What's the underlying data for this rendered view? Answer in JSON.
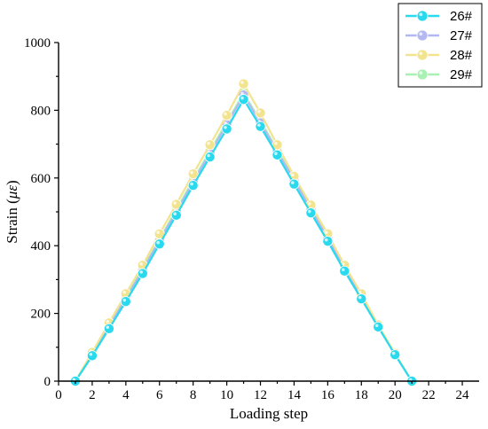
{
  "chart_data": {
    "type": "line",
    "xlabel": "Loading step",
    "ylabel": "Strain (",
    "ylabel_symbol": "με",
    "ylabel_close": ")",
    "xlim": [
      0,
      25
    ],
    "ylim": [
      0,
      1000
    ],
    "xticks": [
      0,
      2,
      4,
      6,
      8,
      10,
      12,
      14,
      16,
      18,
      20,
      22,
      24
    ],
    "yticks": [
      0,
      200,
      400,
      600,
      800,
      1000
    ],
    "grid": false,
    "legend_position": "top-right",
    "x": [
      1,
      2,
      3,
      4,
      5,
      6,
      7,
      8,
      9,
      10,
      11,
      12,
      13,
      14,
      15,
      16,
      17,
      18,
      19,
      20,
      21
    ],
    "series": [
      {
        "name": "26#",
        "color": "#29d9ee",
        "values": [
          0,
          75,
          155,
          235,
          318,
          405,
          490,
          578,
          662,
          745,
          832,
          752,
          668,
          582,
          497,
          413,
          325,
          243,
          160,
          78,
          0
        ]
      },
      {
        "name": "27#",
        "color": "#b4b8f2",
        "values": [
          0,
          78,
          162,
          243,
          328,
          415,
          500,
          588,
          673,
          758,
          845,
          763,
          678,
          594,
          507,
          422,
          334,
          250,
          164,
          80,
          0
        ]
      },
      {
        "name": "28#",
        "color": "#f2e38f",
        "values": [
          0,
          85,
          172,
          258,
          342,
          435,
          522,
          612,
          698,
          785,
          878,
          792,
          698,
          605,
          520,
          435,
          342,
          258,
          166,
          82,
          0
        ]
      },
      {
        "name": "29#",
        "color": "#a9f0b3",
        "values": [
          0,
          80,
          165,
          247,
          332,
          420,
          506,
          594,
          680,
          765,
          850,
          768,
          684,
          597,
          510,
          425,
          336,
          252,
          163,
          80,
          0
        ]
      }
    ]
  }
}
